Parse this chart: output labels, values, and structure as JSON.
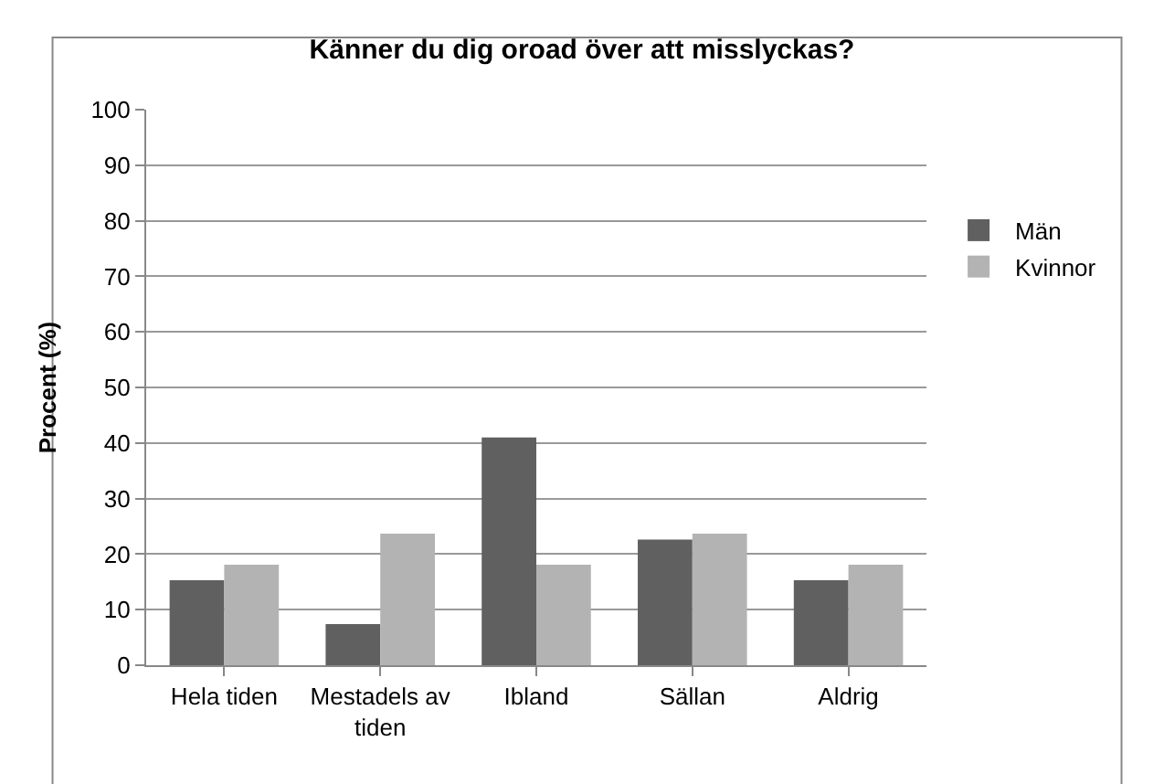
{
  "chart_data": {
    "type": "bar",
    "title": "Känner du dig oroad över att misslyckas?",
    "ylabel": "Procent (%)",
    "categories": [
      "Hela tiden",
      "Mestadels av tiden",
      "Ibland",
      "Sällan",
      "Aldrig"
    ],
    "series": [
      {
        "name": "Män",
        "color": "#606060",
        "values": [
          15.3,
          7.4,
          41,
          22.6,
          15.3
        ]
      },
      {
        "name": "Kvinnor",
        "color": "#b3b3b3",
        "values": [
          18.1,
          23.7,
          18.1,
          23.7,
          18.1
        ]
      }
    ],
    "ylim": [
      0,
      100
    ],
    "yticks": [
      0,
      10,
      20,
      30,
      40,
      50,
      60,
      70,
      80,
      90,
      100
    ],
    "grid": "y",
    "legend": "right"
  }
}
